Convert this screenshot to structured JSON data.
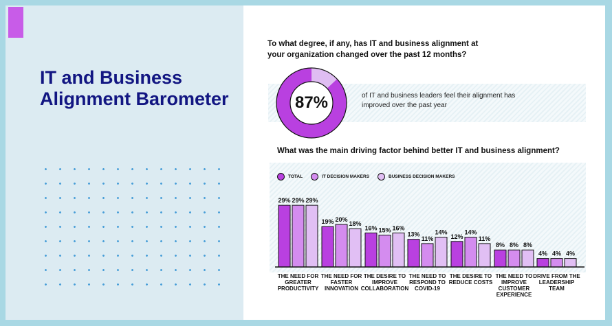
{
  "left": {
    "title_line1": "IT and Business",
    "title_line2": "Alignment Barometer"
  },
  "question1": "To what degree, if any, has IT and business alignment at your organization changed over the past 12 months?",
  "stat": {
    "percent_label": "87%",
    "value": 87,
    "text": "of IT and business leaders feel their alignment has improved over the past year"
  },
  "question2": "What was the main driving factor behind better IT and business alignment?",
  "colors": {
    "total": "#b940e0",
    "it": "#d48cef",
    "business": "#e1bff4",
    "donut_remainder": "#dfbdf2",
    "title": "#121682"
  },
  "chart_data": {
    "type": "bar",
    "legend_position": "top-left",
    "ylim": [
      0,
      30
    ],
    "grid": false,
    "categories": [
      "THE NEED FOR GREATER PRODUCTIVITY",
      "THE NEED FOR FASTER INNOVATION",
      "THE DESIRE TO IMPROVE COLLABORATION",
      "THE NEED TO RESPOND TO COVID-19",
      "THE DESIRE TO REDUCE COSTS",
      "THE NEED TO IMPROVE CUSTOMER EXPERIENCE",
      "DRIVE FROM THE LEADERSHIP TEAM"
    ],
    "series": [
      {
        "name": "TOTAL",
        "values": [
          29,
          19,
          16,
          13,
          12,
          8,
          4
        ]
      },
      {
        "name": "IT DECISION MAKERS",
        "values": [
          29,
          20,
          15,
          11,
          14,
          8,
          4
        ]
      },
      {
        "name": "BUSINESS DECISION MAKERS",
        "values": [
          29,
          18,
          16,
          14,
          11,
          8,
          4
        ]
      }
    ]
  }
}
